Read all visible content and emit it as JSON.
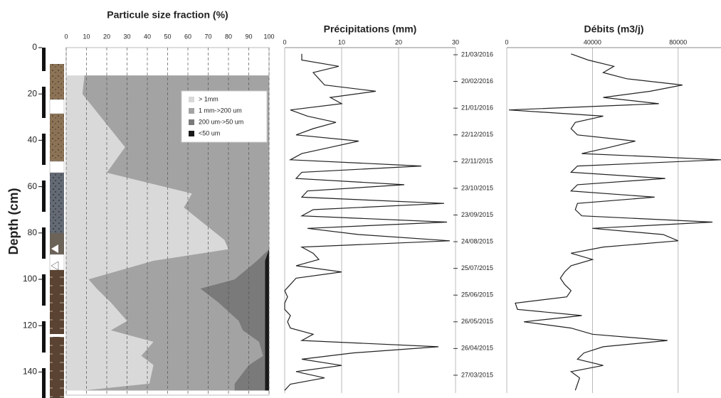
{
  "chart_data": [
    {
      "type": "area",
      "title": "Particule size fraction (%)",
      "ylabel": "Depth (cm)",
      "y": [
        12,
        20,
        43,
        54,
        63,
        69,
        83,
        87,
        92,
        100,
        104,
        110,
        118,
        122,
        127,
        133,
        137,
        145,
        148
      ],
      "series": [
        {
          "name": "> 1mm",
          "color": "#d9d9d9",
          "values": [
            9,
            8,
            29,
            20,
            62,
            58,
            78,
            80,
            43,
            11,
            15,
            22,
            30,
            22,
            43,
            37,
            43,
            41,
            8
          ]
        },
        {
          "name": "1 mm->200 um",
          "color": "#a3a3a3",
          "values": [
            91,
            92,
            71,
            80,
            38,
            42,
            22,
            20,
            51,
            72,
            51,
            53,
            55,
            65,
            52,
            60,
            47,
            42,
            75
          ]
        },
        {
          "name": "200 um->50 um",
          "color": "#7a7a7a",
          "values": [
            0,
            0,
            0,
            0,
            0,
            0,
            0,
            0,
            4,
            15,
            32,
            23,
            13,
            11,
            3,
            1,
            8,
            15,
            15
          ]
        },
        {
          "name": "<50 um",
          "color": "#1a1a1a",
          "values": [
            0,
            0,
            0,
            0,
            0,
            0,
            0,
            0,
            2,
            2,
            2,
            2,
            2,
            2,
            2,
            2,
            2,
            2,
            2
          ]
        }
      ],
      "xlim": [
        0,
        100
      ],
      "xticks": [
        0,
        10,
        20,
        30,
        40,
        50,
        60,
        70,
        80,
        90,
        100
      ],
      "ylim": [
        0,
        150
      ],
      "yticks": [
        0,
        20,
        40,
        60,
        80,
        100,
        120,
        140
      ],
      "grid": true,
      "legend": "upper right"
    },
    {
      "type": "line",
      "title": "Précipitations (mm)",
      "x": [
        "10/03/2015",
        "17/03/2015",
        "24/03/2015",
        "31/03/2015",
        "07/04/2015",
        "14/04/2015",
        "21/04/2015",
        "28/04/2015",
        "05/05/2015",
        "12/05/2015",
        "19/05/2015",
        "26/05/2015",
        "02/06/2015",
        "09/06/2015",
        "16/06/2015",
        "23/06/2015",
        "30/06/2015",
        "07/07/2015",
        "14/07/2015",
        "21/07/2015",
        "28/07/2015",
        "04/08/2015",
        "11/08/2015",
        "18/08/2015",
        "25/08/2015",
        "01/09/2015",
        "08/09/2015",
        "15/09/2015",
        "22/09/2015",
        "29/09/2015",
        "06/10/2015",
        "13/10/2015",
        "20/10/2015",
        "27/10/2015",
        "03/11/2015",
        "10/11/2015",
        "17/11/2015",
        "24/11/2015",
        "01/12/2015",
        "08/12/2015",
        "15/12/2015",
        "22/12/2015",
        "29/12/2015",
        "05/01/2016",
        "12/01/2016",
        "19/01/2016",
        "26/01/2016",
        "02/02/2016",
        "09/02/2016",
        "16/02/2016",
        "23/02/2016",
        "01/03/2016",
        "08/03/2016",
        "15/03/2016",
        "22/03/2016"
      ],
      "series": [
        {
          "name": "Précipitations",
          "color": "#222222",
          "values": [
            0,
            1,
            7,
            2,
            10,
            3,
            12,
            27,
            3,
            5,
            1,
            0.5,
            1,
            0,
            0,
            0.5,
            0,
            1,
            2,
            10,
            2,
            6,
            5,
            3,
            29,
            13,
            4,
            28.5,
            3,
            5,
            28,
            3,
            4,
            21,
            2,
            3,
            24,
            1,
            3,
            8,
            13,
            2,
            5,
            9,
            4,
            1,
            10,
            8,
            16,
            7,
            6,
            5,
            9.5,
            3,
            3
          ]
        }
      ],
      "xlim": [
        0,
        30
      ],
      "xticks": [
        0,
        10,
        20,
        30
      ],
      "ylim": [
        "07/03/2015",
        "29/03/2016"
      ],
      "yticks": [
        "21/03/2016",
        "20/02/2016",
        "21/01/2016",
        "22/12/2015",
        "22/11/2015",
        "23/10/2015",
        "23/09/2015",
        "24/08/2015",
        "25/07/2015",
        "25/06/2015",
        "26/05/2015",
        "26/04/2015",
        "27/03/2015"
      ],
      "grid": true
    },
    {
      "type": "line",
      "title": "Débits (m3/j)",
      "x": [
        "10/03/2015",
        "17/03/2015",
        "24/03/2015",
        "31/03/2015",
        "07/04/2015",
        "14/04/2015",
        "21/04/2015",
        "28/04/2015",
        "05/05/2015",
        "12/05/2015",
        "19/05/2015",
        "26/05/2015",
        "02/06/2015",
        "09/06/2015",
        "16/06/2015",
        "23/06/2015",
        "30/06/2015",
        "07/07/2015",
        "14/07/2015",
        "21/07/2015",
        "28/07/2015",
        "04/08/2015",
        "11/08/2015",
        "18/08/2015",
        "25/08/2015",
        "01/09/2015",
        "08/09/2015",
        "15/09/2015",
        "22/09/2015",
        "29/09/2015",
        "06/10/2015",
        "13/10/2015",
        "20/10/2015",
        "27/10/2015",
        "03/11/2015",
        "10/11/2015",
        "17/11/2015",
        "24/11/2015",
        "01/12/2015",
        "08/12/2015",
        "15/12/2015",
        "22/12/2015",
        "29/12/2015",
        "05/01/2016",
        "12/01/2016",
        "19/01/2016",
        "26/01/2016",
        "02/02/2016",
        "09/02/2016",
        "16/02/2016",
        "23/02/2016",
        "01/03/2016",
        "08/03/2016",
        "15/03/2016",
        "22/03/2016"
      ],
      "series": [
        {
          "name": "Débits",
          "color": "#222222",
          "values": [
            32000,
            33000,
            34000,
            30000,
            45000,
            33000,
            36000,
            45000,
            75000,
            40000,
            30000,
            8000,
            35000,
            5000,
            4000,
            28000,
            30000,
            27000,
            25000,
            27000,
            30000,
            40000,
            30000,
            45000,
            80000,
            73000,
            40000,
            96000,
            35000,
            32000,
            33000,
            69000,
            30000,
            33000,
            74000,
            30000,
            33000,
            100000,
            35000,
            48000,
            60000,
            33000,
            30000,
            32000,
            45000,
            1000,
            71000,
            45000,
            67000,
            82000,
            56000,
            45000,
            50000,
            38000,
            30000
          ]
        }
      ],
      "xlim": [
        0,
        100000
      ],
      "xticks": [
        0,
        40000,
        80000
      ],
      "ylim": [
        "07/03/2015",
        "29/03/2016"
      ],
      "grid": true
    }
  ]
}
